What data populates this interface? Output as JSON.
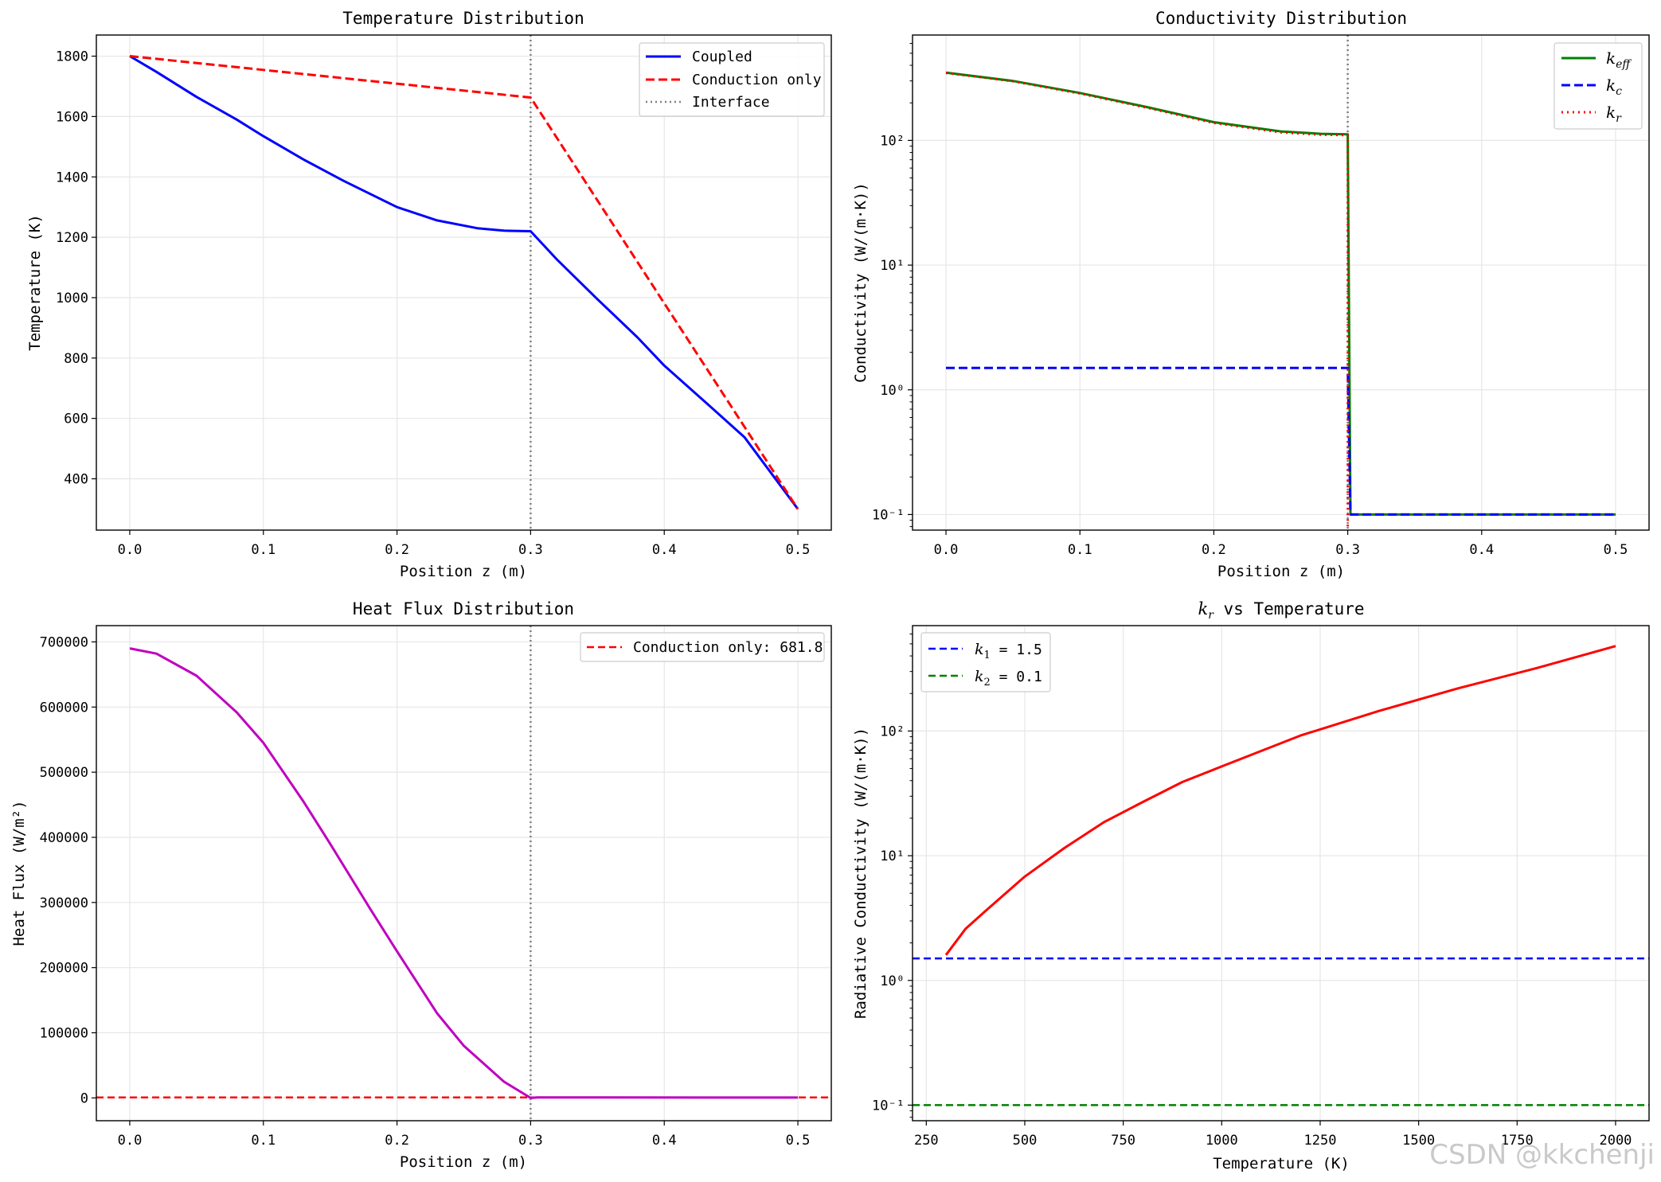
{
  "watermark": "CSDN @kkchenji",
  "colors": {
    "blue": "#0000ff",
    "red": "#ff0000",
    "green": "#008000",
    "magenta": "#bf00bf",
    "gray": "#808080",
    "grid": "#e6e6e6"
  },
  "chart_data": [
    {
      "id": "p1",
      "type": "line",
      "title": "Temperature Distribution",
      "xlabel": "Position z (m)",
      "ylabel": "Temperature (K)",
      "xlim": [
        -0.025,
        0.525
      ],
      "ylim": [
        230,
        1870
      ],
      "xticks": [
        0,
        0.1,
        0.2,
        0.3,
        0.4,
        0.5
      ],
      "xtick_labels": [
        "0.0",
        "0.1",
        "0.2",
        "0.3",
        "0.4",
        "0.5"
      ],
      "yticks": [
        400,
        600,
        800,
        1000,
        1200,
        1400,
        1600,
        1800
      ],
      "ytick_labels": [
        "400",
        "600",
        "800",
        "1000",
        "1200",
        "1400",
        "1600",
        "1800"
      ],
      "grid": true,
      "legend_position": "top-right",
      "vline": {
        "x": 0.3,
        "name": "Interface",
        "color": "#808080",
        "dash": "dotted"
      },
      "series": [
        {
          "name": "Coupled",
          "color": "#0000ff",
          "dash": "solid",
          "x": [
            0,
            0.02,
            0.05,
            0.08,
            0.1,
            0.13,
            0.16,
            0.2,
            0.23,
            0.26,
            0.28,
            0.3,
            0.32,
            0.35,
            0.38,
            0.4,
            0.43,
            0.46,
            0.5
          ],
          "y": [
            1800,
            1748,
            1665,
            1590,
            1535,
            1458,
            1387,
            1300,
            1256,
            1230,
            1222,
            1220,
            1125,
            995,
            868,
            775,
            657,
            538,
            300
          ]
        },
        {
          "name": "Conduction only",
          "color": "#ff0000",
          "dash": "dashed",
          "x": [
            0,
            0.3,
            0.5
          ],
          "y": [
            1800,
            1663,
            300
          ]
        }
      ]
    },
    {
      "id": "p2",
      "type": "line",
      "title": "Conductivity Distribution",
      "xlabel": "Position z (m)",
      "ylabel": "Conductivity (W/(m·K))",
      "yscale": "log",
      "xlim": [
        -0.025,
        0.525
      ],
      "ylim": [
        0.075,
        700
      ],
      "xticks": [
        0,
        0.1,
        0.2,
        0.3,
        0.4,
        0.5
      ],
      "xtick_labels": [
        "0.0",
        "0.1",
        "0.2",
        "0.3",
        "0.4",
        "0.5"
      ],
      "yticks": [
        0.1,
        1,
        10,
        100
      ],
      "ytick_labels": [
        "10⁻¹",
        "10⁰",
        "10¹",
        "10²"
      ],
      "grid": true,
      "legend_position": "top-right",
      "vline": {
        "x": 0.3,
        "color": "#808080",
        "dash": "dotted"
      },
      "series": [
        {
          "name": "k_eff",
          "label_main": "k",
          "label_sub": "eff",
          "color": "#008000",
          "dash": "solid",
          "width": 3,
          "x": [
            0,
            0.05,
            0.1,
            0.15,
            0.2,
            0.25,
            0.28,
            0.3,
            0.3,
            0.302,
            0.5
          ],
          "y": [
            350,
            300,
            240,
            185,
            140,
            118,
            113,
            112,
            112,
            0.1,
            0.1
          ]
        },
        {
          "name": "k_c",
          "label_main": "k",
          "label_sub": "c",
          "color": "#0000ff",
          "dash": "dashed",
          "width": 3,
          "x": [
            0,
            0.3,
            0.302,
            0.5
          ],
          "y": [
            1.5,
            1.5,
            0.1,
            0.1
          ]
        },
        {
          "name": "k_r",
          "label_main": "k",
          "label_sub": "r",
          "color": "#ff0000",
          "dash": "dotted",
          "width": 3,
          "x": [
            0,
            0.05,
            0.1,
            0.15,
            0.2,
            0.25,
            0.28,
            0.3,
            0.3
          ],
          "y": [
            348,
            298,
            238,
            183,
            138,
            116,
            111,
            110,
            0.075
          ]
        }
      ]
    },
    {
      "id": "p3",
      "type": "line",
      "title": "Heat Flux Distribution",
      "xlabel": "Position z (m)",
      "ylabel": "Heat Flux (W/m²)",
      "xlim": [
        -0.025,
        0.525
      ],
      "ylim": [
        -35000,
        725000
      ],
      "xticks": [
        0,
        0.1,
        0.2,
        0.3,
        0.4,
        0.5
      ],
      "xtick_labels": [
        "0.0",
        "0.1",
        "0.2",
        "0.3",
        "0.4",
        "0.5"
      ],
      "yticks": [
        0,
        100000,
        200000,
        300000,
        400000,
        500000,
        600000,
        700000
      ],
      "ytick_labels": [
        "0",
        "100000",
        "200000",
        "300000",
        "400000",
        "500000",
        "600000",
        "700000"
      ],
      "grid": true,
      "legend_position": "top-right",
      "vline": {
        "x": 0.3,
        "color": "#808080",
        "dash": "dotted"
      },
      "hline": {
        "y": 681.8,
        "name": "Conduction only: 681.8",
        "color": "#ff0000",
        "dash": "dashed"
      },
      "series": [
        {
          "color": "#bf00bf",
          "dash": "solid",
          "x": [
            0,
            0.02,
            0.05,
            0.08,
            0.1,
            0.13,
            0.15,
            0.18,
            0.2,
            0.23,
            0.25,
            0.28,
            0.3,
            0.305,
            0.5
          ],
          "y": [
            690000,
            682000,
            648000,
            592000,
            545000,
            455000,
            390000,
            290000,
            225000,
            130000,
            80000,
            25000,
            0,
            800,
            500
          ]
        }
      ]
    },
    {
      "id": "p4",
      "type": "line",
      "title": "k_r vs Temperature",
      "title_main": "k",
      "title_sub": "r",
      "title_rest": " vs Temperature",
      "xlabel": "Temperature (K)",
      "ylabel": "Radiative Conductivity (W/(m·K))",
      "yscale": "log",
      "xlim": [
        215,
        2085
      ],
      "ylim": [
        0.075,
        700
      ],
      "xticks": [
        250,
        500,
        750,
        1000,
        1250,
        1500,
        1750,
        2000
      ],
      "xtick_labels": [
        "250",
        "500",
        "750",
        "1000",
        "1250",
        "1500",
        "1750",
        "2000"
      ],
      "yticks": [
        0.1,
        1,
        10,
        100
      ],
      "ytick_labels": [
        "10⁻¹",
        "10⁰",
        "10¹",
        "10²"
      ],
      "grid": true,
      "legend_position": "top-left",
      "hlines": [
        {
          "y": 1.5,
          "name": "k_1 = 1.5",
          "label_main": "k",
          "label_sub": "1",
          "label_rest": " = 1.5",
          "color": "#0000ff",
          "dash": "dashed"
        },
        {
          "y": 0.1,
          "name": "k_2 = 0.1",
          "label_main": "k",
          "label_sub": "2",
          "label_rest": " = 0.1",
          "color": "#008000",
          "dash": "dashed"
        }
      ],
      "series": [
        {
          "color": "#ff0000",
          "dash": "solid",
          "x": [
            300,
            350,
            400,
            500,
            600,
            700,
            800,
            900,
            1000,
            1200,
            1400,
            1600,
            1800,
            2000
          ],
          "y": [
            1.6,
            2.6,
            3.6,
            6.8,
            11.5,
            18.5,
            27,
            39,
            52,
            92,
            145,
            220,
            320,
            480
          ]
        }
      ]
    }
  ]
}
